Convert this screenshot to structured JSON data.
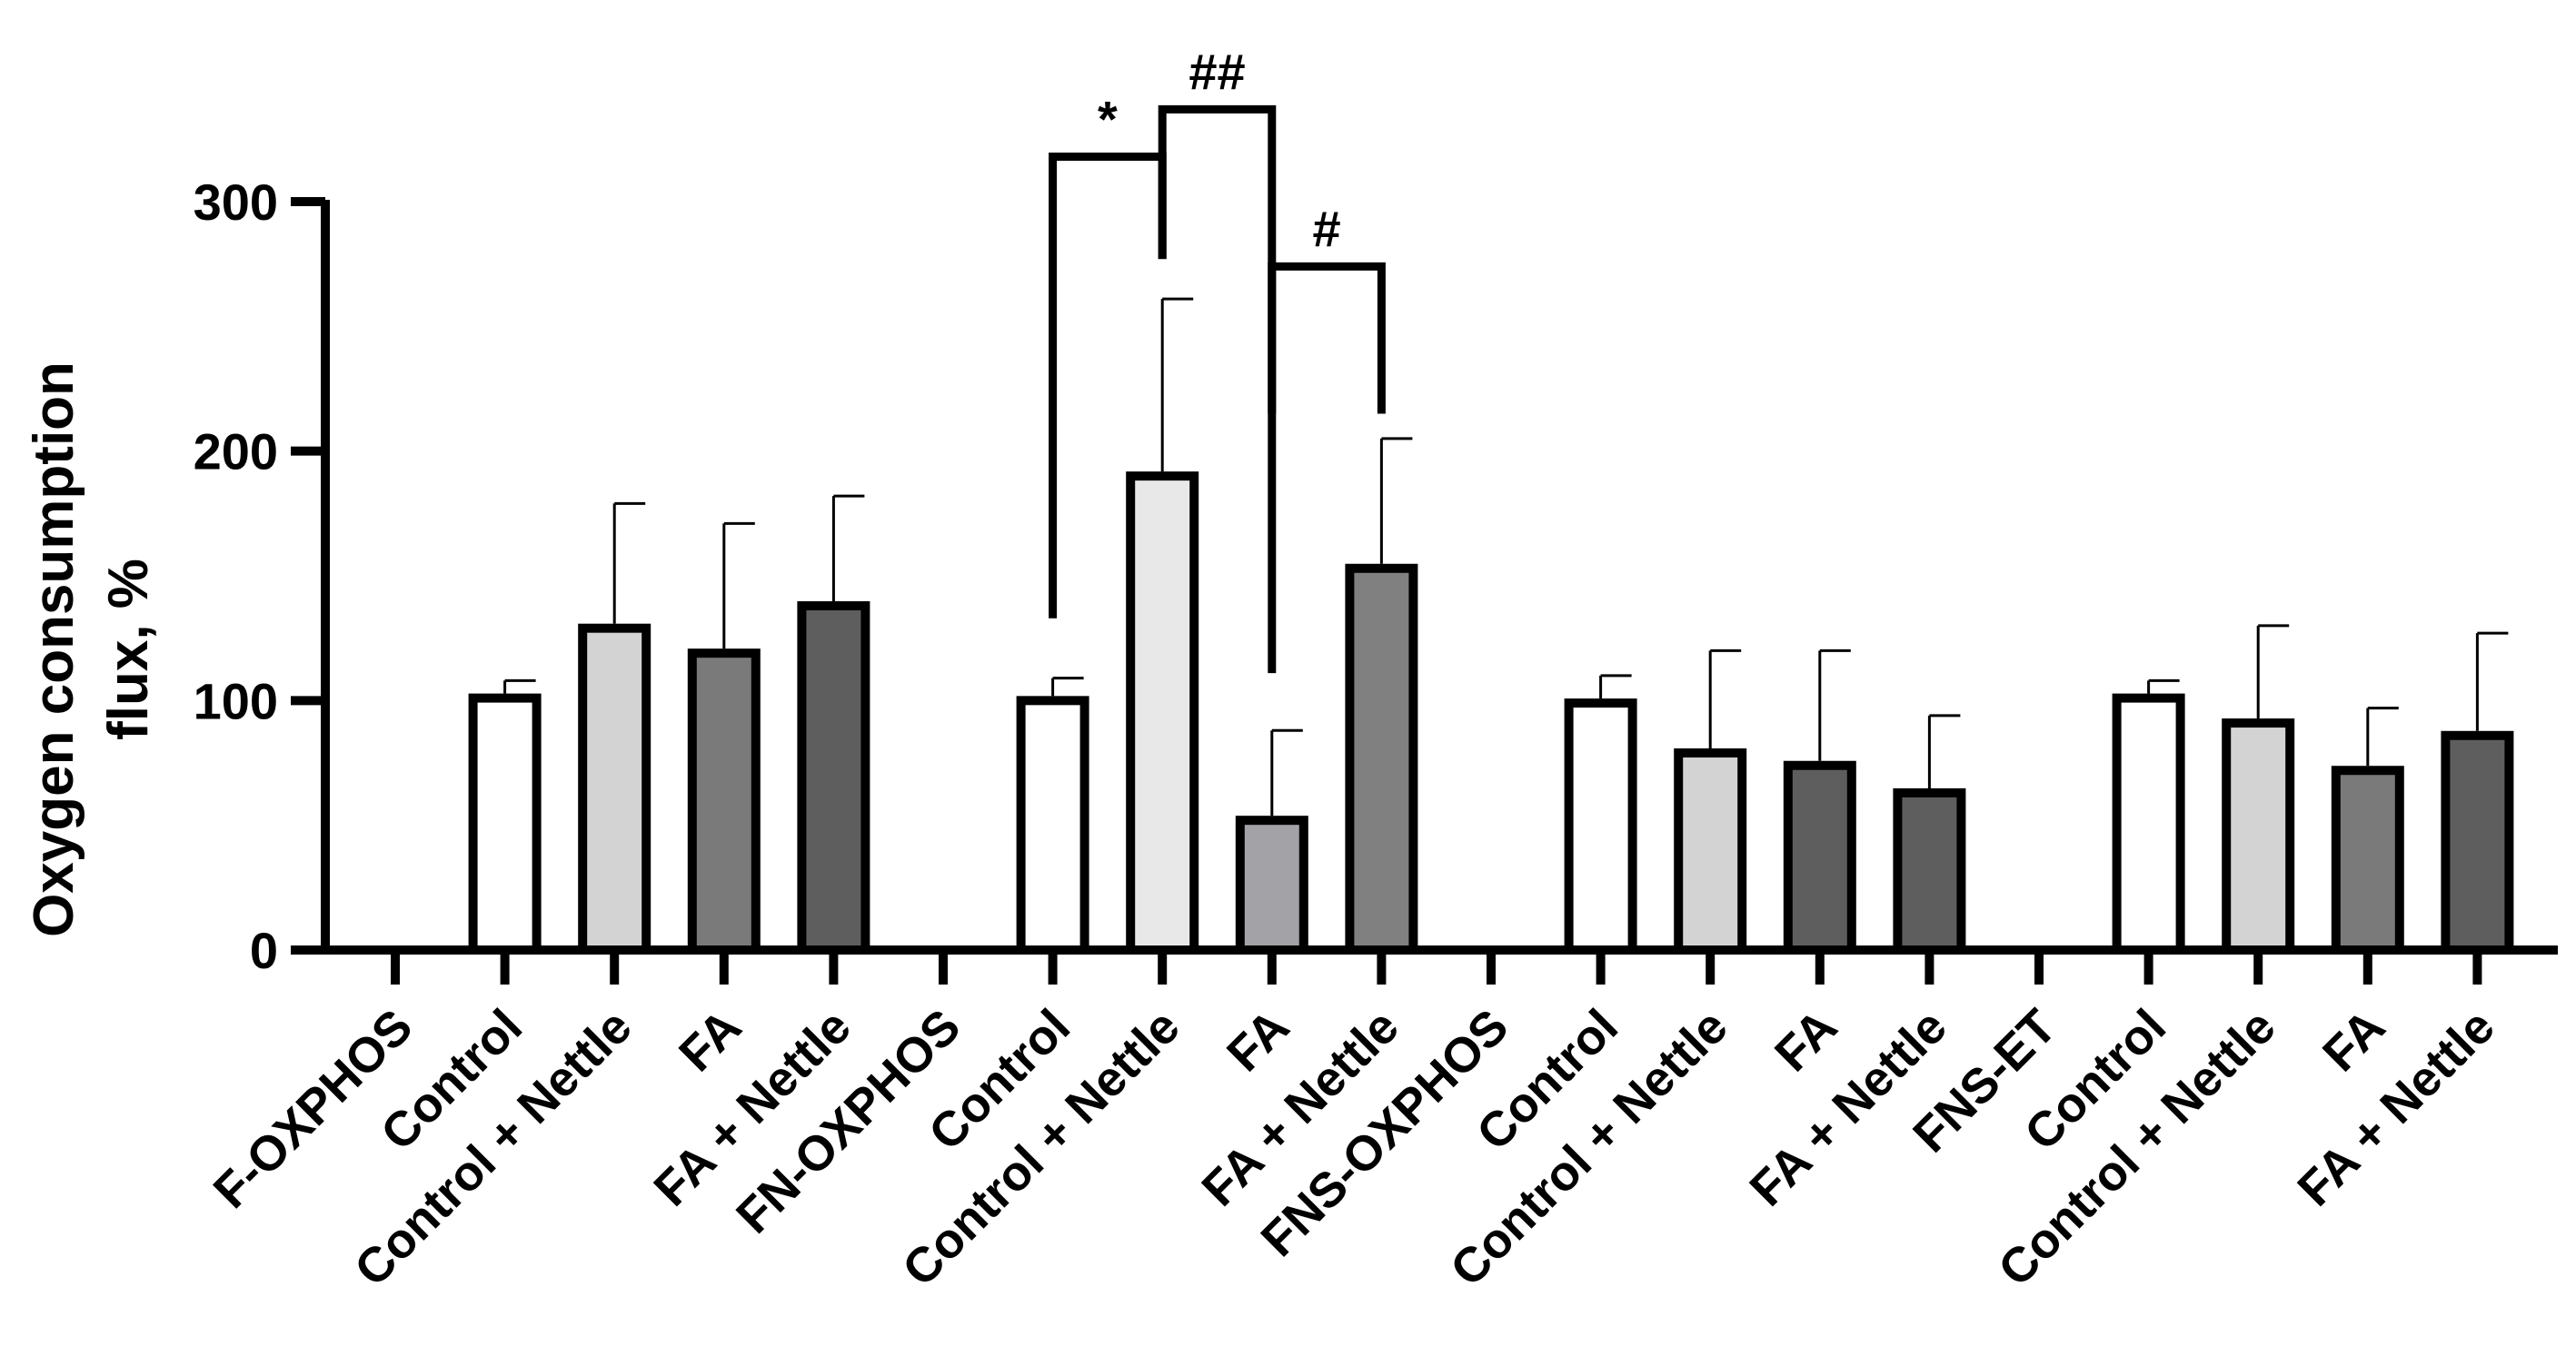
{
  "chart_data": {
    "type": "bar",
    "title": "",
    "xlabel": "",
    "ylabel_lines": [
      "Oxygen consumption",
      "flux, %"
    ],
    "ylim": [
      0,
      300
    ],
    "yticks": [
      0,
      100,
      200,
      300
    ],
    "categories": [
      "F-OXPHOS",
      "Control",
      "Control + Nettle",
      "FA",
      "FA + Nettle",
      "FN-OXPHOS",
      "Control",
      "Control + Nettle",
      "FA",
      "FA + Nettle",
      "FNS-OXPHOS",
      "Control",
      "Control + Nettle",
      "FA",
      "FA + Nettle",
      "FNS-ET",
      "Control",
      "Control + Nettle",
      "FA",
      "FA + Nettle"
    ],
    "values": [
      null,
      101,
      129,
      119,
      138,
      null,
      100,
      190,
      52,
      153,
      null,
      99,
      79,
      74,
      63,
      null,
      101,
      91,
      72,
      86
    ],
    "error_upper": [
      null,
      108,
      179,
      171,
      182,
      null,
      109,
      261,
      88,
      205,
      null,
      110,
      120,
      120,
      94,
      null,
      108,
      130,
      97,
      127
    ],
    "fill_colors": [
      null,
      "#ffffff",
      "#d3d3d3",
      "#7a7a7a",
      "#5e5e5e",
      null,
      "#ffffff",
      "#e8e8e8",
      "#a2a2a7",
      "#808080",
      null,
      "#ffffff",
      "#d3d3d3",
      "#5e5e5e",
      "#5e5e5e",
      null,
      "#ffffff",
      "#d3d3d3",
      "#7a7a7a",
      "#5e5e5e"
    ],
    "significance": [
      {
        "label": "*",
        "left_index": 6,
        "right_index": 7,
        "left_end": 133,
        "right_end": 277,
        "top": 318
      },
      {
        "label": "##",
        "left_index": 7,
        "right_index": 8,
        "left_end": 277,
        "right_end": 111,
        "top": 337
      },
      {
        "label": "#",
        "left_index": 8,
        "right_index": 9,
        "left_end": 215,
        "right_end": 215,
        "top": 274
      }
    ]
  }
}
